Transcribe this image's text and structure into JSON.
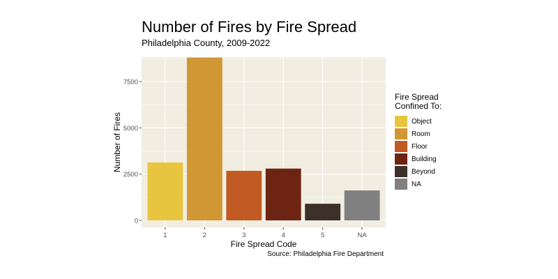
{
  "chart_data": {
    "type": "bar",
    "title": "Number of Fires by Fire Spread",
    "subtitle": "Philadelphia County, 2009-2022",
    "xlabel": "Fire Spread Code",
    "ylabel": "Number of Fires",
    "caption": "Source: Philadelphia Fire Department",
    "categories": [
      "1",
      "2",
      "3",
      "4",
      "5",
      "NA"
    ],
    "values": [
      3130,
      8800,
      2680,
      2800,
      900,
      1620
    ],
    "colors": [
      "#E8C53F",
      "#D19734",
      "#C15A23",
      "#6E2412",
      "#3C3029",
      "#808080"
    ],
    "ylim": [
      0,
      9000
    ],
    "yticks": [
      0,
      2500,
      5000,
      7500
    ],
    "ytick_labels": [
      "0",
      "2500",
      "5000",
      "7500"
    ],
    "grid": true,
    "panel_background": "#F1EDE1",
    "legend": {
      "title_line1": "Fire Spread",
      "title_line2": "Confined To:",
      "placement": "right",
      "entries": [
        "Object",
        "Room",
        "Floor",
        "Building",
        "Beyond",
        "NA"
      ]
    }
  }
}
